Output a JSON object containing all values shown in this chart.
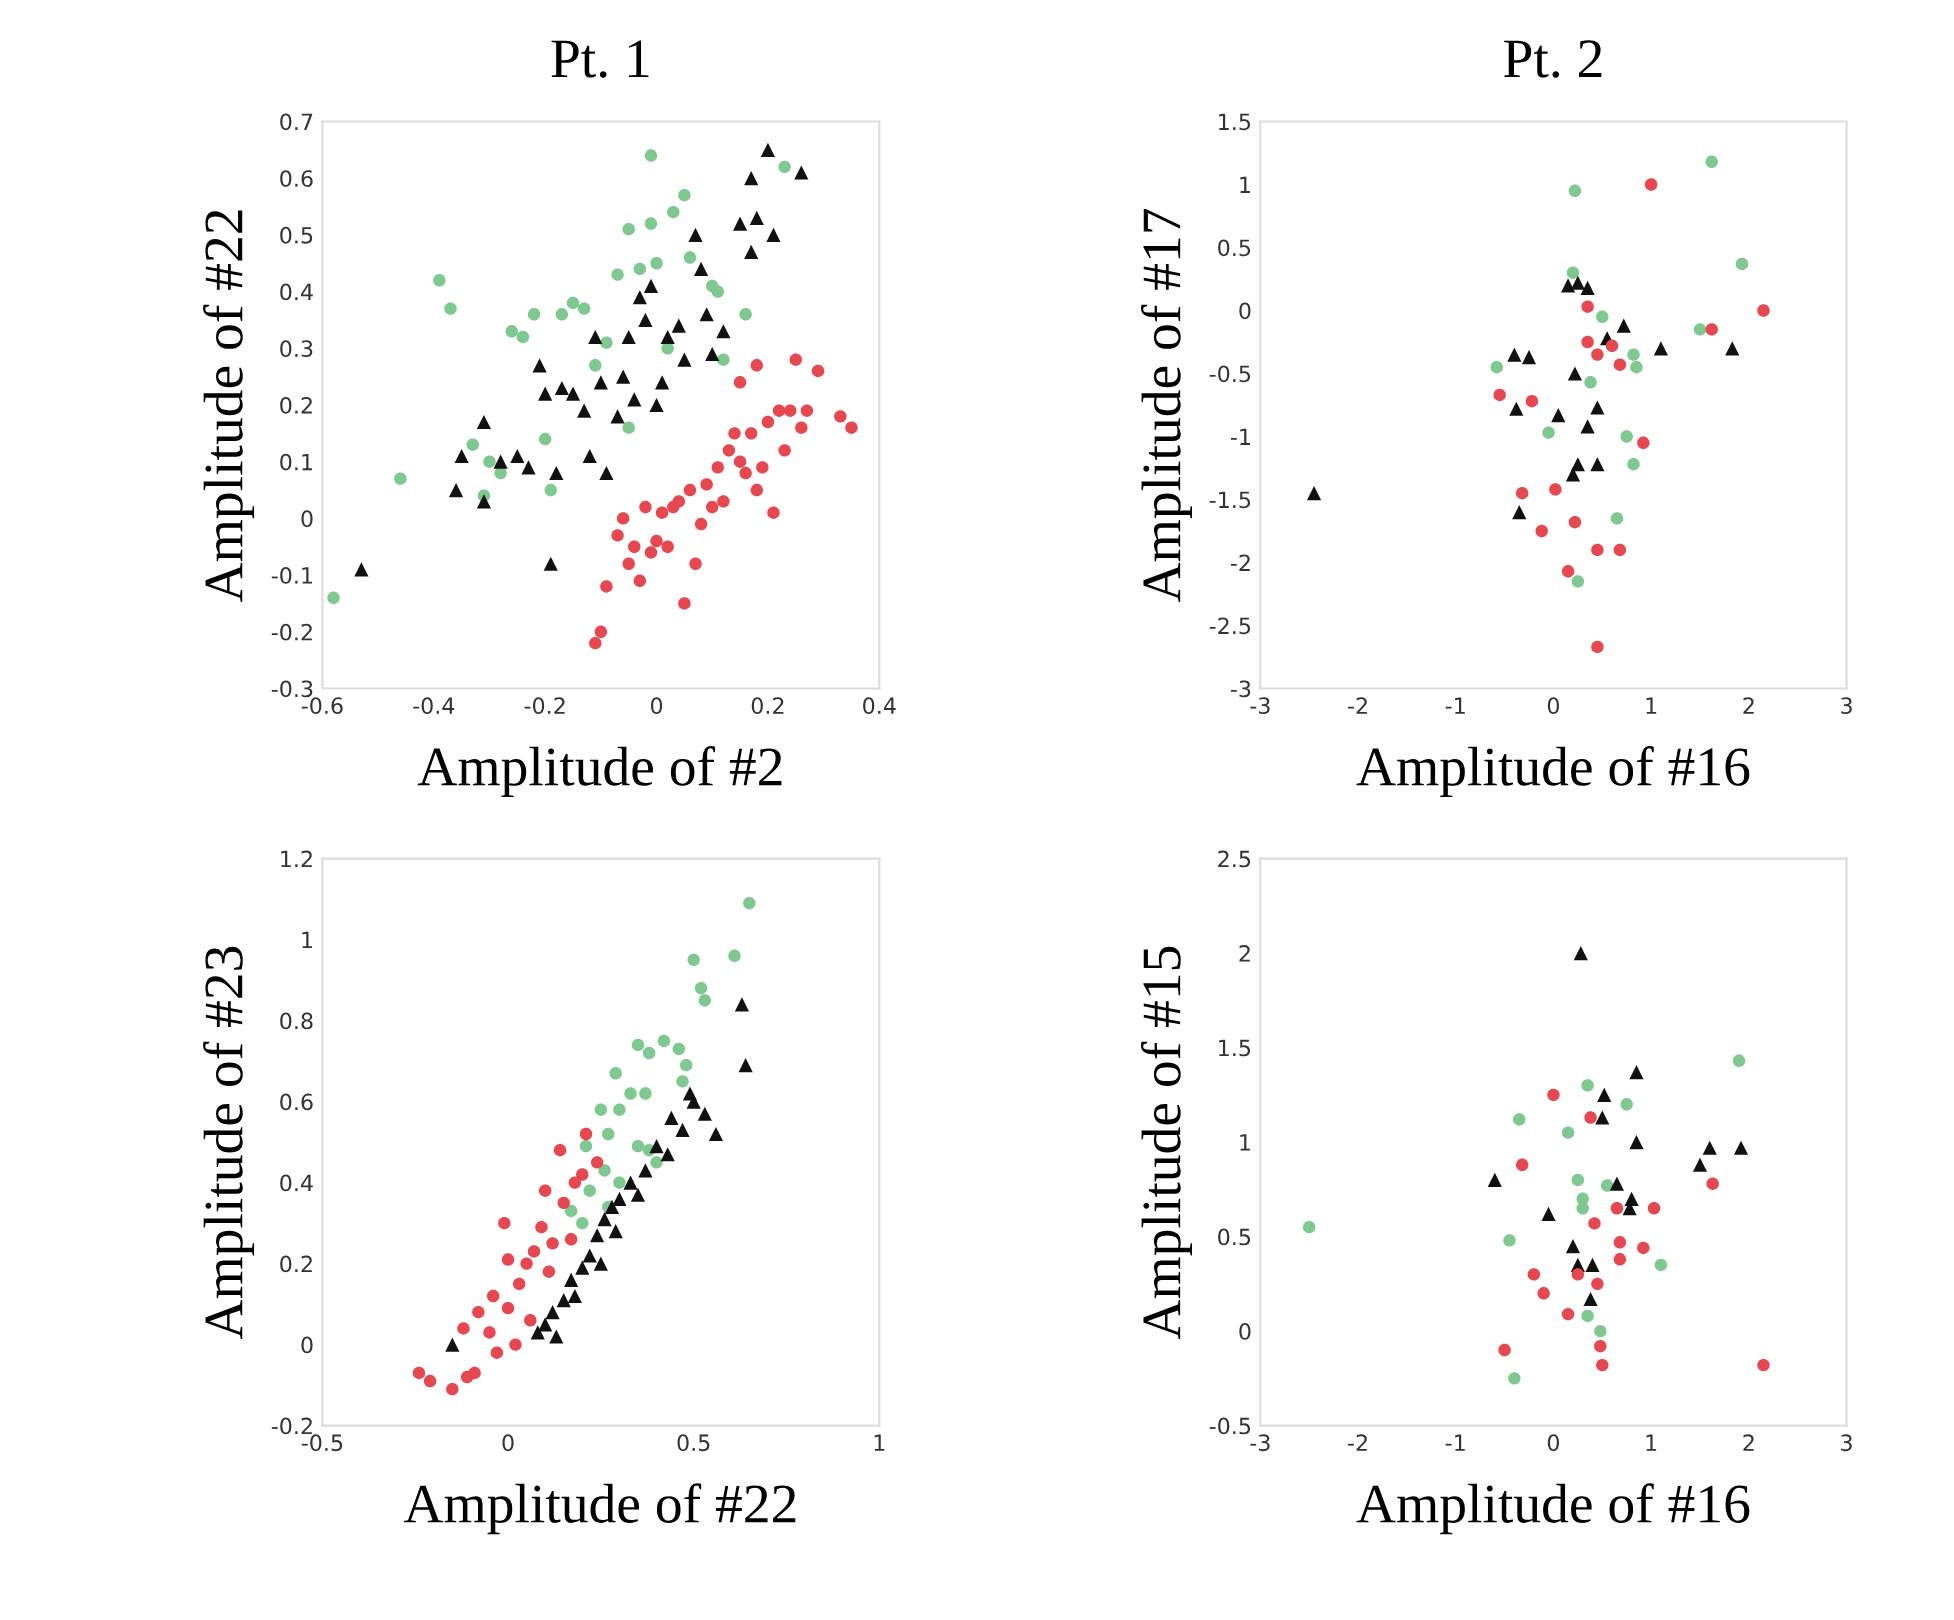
{
  "chart_data": [
    {
      "type": "scatter",
      "title": "Pt. 1",
      "xlabel": "Amplitude of #2",
      "ylabel": "Amplitude of #22",
      "xlim": [
        -0.6,
        0.4
      ],
      "ylim": [
        -0.3,
        0.7
      ],
      "xticks": [
        -0.6,
        -0.4,
        -0.2,
        0,
        0.2,
        0.4
      ],
      "yticks": [
        -0.3,
        -0.2,
        -0.1,
        0,
        0.1,
        0.2,
        0.3,
        0.4,
        0.5,
        0.6,
        0.7
      ],
      "grid": false,
      "legend": false,
      "series": [
        {
          "color": "#7dc98f",
          "marker": "circle",
          "x": [
            -0.58,
            -0.46,
            -0.39,
            -0.37,
            -0.33,
            -0.31,
            -0.3,
            -0.28,
            -0.26,
            -0.24,
            -0.22,
            -0.2,
            -0.19,
            -0.17,
            -0.15,
            -0.13,
            -0.11,
            -0.09,
            -0.07,
            -0.05,
            -0.05,
            -0.03,
            -0.01,
            -0.01,
            0.0,
            0.02,
            0.03,
            0.05,
            0.06,
            0.1,
            0.11,
            0.16,
            0.23,
            0.12
          ],
          "values": [
            -0.14,
            0.07,
            0.42,
            0.37,
            0.13,
            0.04,
            0.1,
            0.08,
            0.33,
            0.32,
            0.36,
            0.14,
            0.05,
            0.36,
            0.38,
            0.37,
            0.27,
            0.31,
            0.43,
            0.51,
            0.16,
            0.44,
            0.64,
            0.52,
            0.45,
            0.3,
            0.54,
            0.57,
            0.46,
            0.41,
            0.4,
            0.36,
            0.62,
            0.28
          ]
        },
        {
          "color": "#111111",
          "marker": "triangle",
          "x": [
            -0.53,
            -0.36,
            -0.35,
            -0.31,
            -0.31,
            -0.28,
            -0.25,
            -0.23,
            -0.21,
            -0.2,
            -0.19,
            -0.18,
            -0.17,
            -0.15,
            -0.13,
            -0.12,
            -0.11,
            -0.1,
            -0.09,
            -0.07,
            -0.06,
            -0.05,
            -0.04,
            -0.03,
            -0.02,
            -0.01,
            0.0,
            0.01,
            0.02,
            0.04,
            0.05,
            0.07,
            0.08,
            0.09,
            0.1,
            0.12,
            0.15,
            0.17,
            0.17,
            0.18,
            0.2,
            0.21,
            0.26
          ],
          "values": [
            -0.09,
            0.05,
            0.11,
            0.03,
            0.17,
            0.1,
            0.11,
            0.09,
            0.27,
            0.22,
            -0.08,
            0.08,
            0.23,
            0.22,
            0.19,
            0.11,
            0.32,
            0.24,
            0.08,
            0.18,
            0.25,
            0.32,
            0.21,
            0.39,
            0.35,
            0.41,
            0.2,
            0.24,
            0.32,
            0.34,
            0.28,
            0.5,
            0.44,
            0.36,
            0.29,
            0.33,
            0.52,
            0.47,
            0.6,
            0.53,
            0.65,
            0.5,
            0.61
          ]
        },
        {
          "color": "#e8474f",
          "marker": "circle",
          "x": [
            -0.11,
            -0.1,
            -0.09,
            -0.07,
            -0.06,
            -0.05,
            -0.04,
            -0.03,
            -0.02,
            -0.01,
            0.0,
            0.01,
            0.02,
            0.03,
            0.05,
            0.04,
            0.06,
            0.07,
            0.08,
            0.09,
            0.1,
            0.11,
            0.12,
            0.13,
            0.14,
            0.15,
            0.15,
            0.16,
            0.17,
            0.18,
            0.18,
            0.19,
            0.2,
            0.21,
            0.22,
            0.23,
            0.24,
            0.25,
            0.26,
            0.27,
            0.29,
            0.33,
            0.35
          ],
          "values": [
            -0.22,
            -0.2,
            -0.12,
            -0.03,
            0.0,
            -0.08,
            -0.05,
            -0.11,
            0.02,
            -0.06,
            -0.04,
            0.01,
            -0.05,
            0.02,
            -0.15,
            0.03,
            0.05,
            -0.08,
            -0.01,
            0.06,
            0.02,
            0.09,
            0.03,
            0.12,
            0.15,
            0.24,
            0.1,
            0.08,
            0.15,
            0.27,
            0.05,
            0.09,
            0.17,
            0.01,
            0.19,
            0.12,
            0.19,
            0.28,
            0.16,
            0.19,
            0.26,
            0.18,
            0.16
          ]
        }
      ]
    },
    {
      "type": "scatter",
      "title": "Pt. 2",
      "xlabel": "Amplitude of #16",
      "ylabel": "Amplitude of #17",
      "xlim": [
        -3,
        3
      ],
      "ylim": [
        -3,
        1.5
      ],
      "xticks": [
        -3,
        -2,
        -1,
        0,
        1,
        2,
        3
      ],
      "yticks": [
        -3,
        -2.5,
        -2,
        -1.5,
        -1,
        -0.5,
        0,
        0.5,
        1,
        1.5
      ],
      "grid": false,
      "legend": false,
      "series": [
        {
          "color": "#7dc98f",
          "marker": "circle",
          "x": [
            0.22,
            1.62,
            1.93,
            0.2,
            0.5,
            1.5,
            -0.58,
            0.82,
            0.85,
            0.38,
            0.75,
            -0.05,
            0.82,
            0.65,
            0.25
          ],
          "values": [
            0.95,
            1.18,
            0.37,
            0.3,
            -0.05,
            -0.15,
            -0.45,
            -0.35,
            -0.45,
            -0.57,
            -1.0,
            -0.97,
            -1.22,
            -1.65,
            -2.15
          ]
        },
        {
          "color": "#111111",
          "marker": "triangle",
          "x": [
            0.15,
            0.25,
            0.35,
            0.72,
            0.55,
            1.1,
            1.83,
            -0.4,
            -0.25,
            0.22,
            -0.38,
            0.05,
            0.45,
            0.35,
            0.25,
            0.45,
            0.2,
            -0.35,
            -2.45
          ],
          "values": [
            0.2,
            0.22,
            0.18,
            -0.12,
            -0.22,
            -0.3,
            -0.3,
            -0.35,
            -0.37,
            -0.5,
            -0.78,
            -0.83,
            -0.77,
            -0.92,
            -1.22,
            -1.22,
            -1.3,
            -1.6,
            -1.45
          ]
        },
        {
          "color": "#e8474f",
          "marker": "circle",
          "x": [
            1.0,
            2.15,
            1.62,
            0.35,
            0.35,
            0.45,
            0.6,
            0.68,
            -0.55,
            -0.22,
            0.92,
            -0.32,
            0.02,
            -0.12,
            0.22,
            0.45,
            0.68,
            0.15,
            0.45
          ],
          "values": [
            1.0,
            0.0,
            -0.15,
            0.03,
            -0.25,
            -0.35,
            -0.28,
            -0.43,
            -0.67,
            -0.72,
            -1.05,
            -1.45,
            -1.42,
            -1.75,
            -1.68,
            -1.9,
            -1.9,
            -2.07,
            -2.67
          ]
        }
      ]
    },
    {
      "type": "scatter",
      "xlabel": "Amplitude of #22",
      "ylabel": "Amplitude of #23",
      "xlim": [
        -0.5,
        1
      ],
      "ylim": [
        -0.2,
        1.2
      ],
      "xticks": [
        -0.5,
        0,
        0.5,
        1
      ],
      "yticks": [
        -0.2,
        0,
        0.2,
        0.4,
        0.6,
        0.8,
        1,
        1.2
      ],
      "grid": false,
      "legend": false,
      "series": [
        {
          "color": "#7dc98f",
          "marker": "circle",
          "x": [
            0.65,
            0.61,
            0.5,
            0.52,
            0.53,
            0.42,
            0.38,
            0.35,
            0.46,
            0.48,
            0.29,
            0.33,
            0.37,
            0.25,
            0.3,
            0.27,
            0.21,
            0.35,
            0.38,
            0.4,
            0.26,
            0.3,
            0.22,
            0.2,
            0.17,
            0.27,
            0.47
          ],
          "values": [
            1.09,
            0.96,
            0.95,
            0.88,
            0.85,
            0.75,
            0.72,
            0.74,
            0.73,
            0.69,
            0.67,
            0.62,
            0.62,
            0.58,
            0.58,
            0.52,
            0.49,
            0.49,
            0.48,
            0.45,
            0.43,
            0.4,
            0.38,
            0.3,
            0.33,
            0.34,
            0.65
          ]
        },
        {
          "color": "#111111",
          "marker": "triangle",
          "x": [
            0.63,
            0.64,
            0.49,
            0.5,
            0.53,
            0.56,
            0.44,
            0.47,
            0.4,
            0.43,
            0.37,
            0.33,
            0.35,
            0.3,
            0.28,
            0.26,
            0.24,
            0.29,
            0.22,
            0.2,
            0.17,
            0.15,
            0.12,
            0.1,
            0.08,
            0.13,
            -0.15,
            0.18,
            0.25
          ],
          "values": [
            0.84,
            0.69,
            0.62,
            0.6,
            0.57,
            0.52,
            0.56,
            0.53,
            0.49,
            0.47,
            0.43,
            0.4,
            0.37,
            0.36,
            0.34,
            0.31,
            0.27,
            0.28,
            0.22,
            0.19,
            0.16,
            0.11,
            0.08,
            0.05,
            0.03,
            0.02,
            0.0,
            0.12,
            0.2
          ]
        },
        {
          "color": "#e8474f",
          "marker": "circle",
          "x": [
            -0.24,
            -0.21,
            -0.15,
            -0.11,
            -0.09,
            -0.12,
            -0.08,
            -0.05,
            -0.03,
            -0.04,
            0.0,
            0.02,
            0.03,
            0.05,
            0.07,
            0.0,
            0.09,
            0.11,
            0.12,
            0.15,
            0.18,
            0.2,
            0.1,
            0.14,
            0.21,
            0.17,
            0.06,
            -0.01,
            0.24
          ],
          "values": [
            -0.07,
            -0.09,
            -0.11,
            -0.08,
            -0.07,
            0.04,
            0.08,
            0.03,
            -0.02,
            0.12,
            0.09,
            0.0,
            0.15,
            0.2,
            0.23,
            0.21,
            0.29,
            0.18,
            0.25,
            0.35,
            0.4,
            0.42,
            0.38,
            0.48,
            0.52,
            0.26,
            0.06,
            0.3,
            0.45
          ]
        }
      ]
    },
    {
      "type": "scatter",
      "xlabel": "Amplitude of #16",
      "ylabel": "Amplitude of #15",
      "xlim": [
        -3,
        3
      ],
      "ylim": [
        -0.5,
        2.5
      ],
      "xticks": [
        -3,
        -2,
        -1,
        0,
        1,
        2,
        3
      ],
      "yticks": [
        -0.5,
        0,
        0.5,
        1,
        1.5,
        2,
        2.5
      ],
      "grid": false,
      "legend": false,
      "series": [
        {
          "color": "#7dc98f",
          "marker": "circle",
          "x": [
            -2.5,
            1.9,
            0.35,
            0.75,
            -0.35,
            0.15,
            0.25,
            0.3,
            0.3,
            0.55,
            -0.45,
            1.1,
            0.35,
            0.48,
            -0.4
          ],
          "values": [
            0.55,
            1.43,
            1.3,
            1.2,
            1.12,
            1.05,
            0.8,
            0.7,
            0.65,
            0.77,
            0.48,
            0.35,
            0.08,
            0.0,
            -0.25
          ]
        },
        {
          "color": "#111111",
          "marker": "triangle",
          "x": [
            0.28,
            0.85,
            0.52,
            0.5,
            0.85,
            1.6,
            1.92,
            1.5,
            -0.6,
            0.65,
            0.8,
            0.78,
            -0.05,
            0.2,
            0.25,
            0.4,
            0.38
          ],
          "values": [
            2.0,
            1.37,
            1.25,
            1.13,
            1.0,
            0.97,
            0.97,
            0.88,
            0.8,
            0.78,
            0.7,
            0.65,
            0.62,
            0.45,
            0.35,
            0.35,
            0.17
          ]
        },
        {
          "color": "#e8474f",
          "marker": "circle",
          "x": [
            0.0,
            0.38,
            -0.32,
            1.63,
            1.03,
            0.65,
            0.42,
            0.68,
            0.92,
            0.68,
            -0.2,
            0.25,
            0.45,
            -0.1,
            0.15,
            0.48,
            -0.5,
            0.5,
            2.15
          ],
          "values": [
            1.25,
            1.13,
            0.88,
            0.78,
            0.65,
            0.65,
            0.57,
            0.47,
            0.44,
            0.38,
            0.3,
            0.3,
            0.25,
            0.2,
            0.09,
            -0.08,
            -0.1,
            -0.18,
            -0.18
          ]
        }
      ]
    }
  ]
}
